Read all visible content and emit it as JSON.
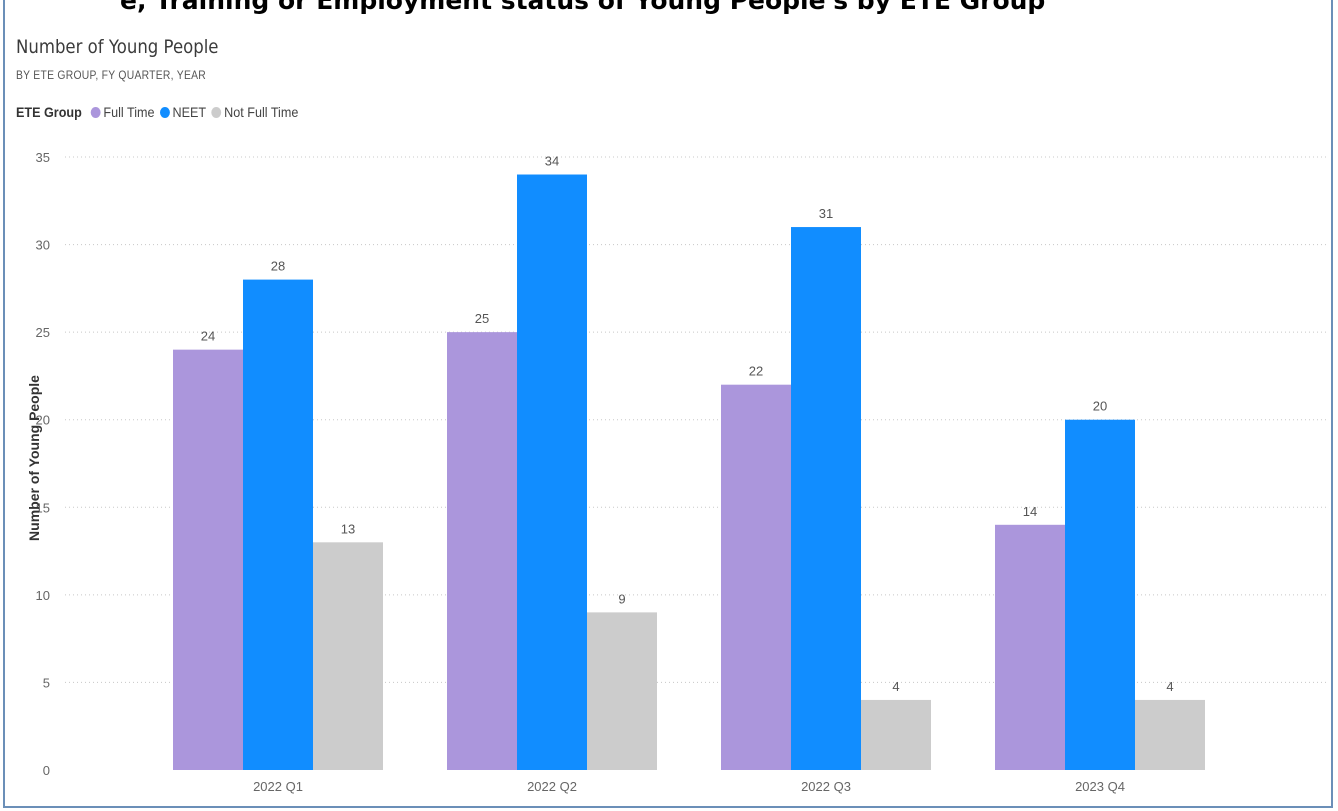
{
  "page": {
    "cut_title": "e, Training or Employment status of Young People's by ETE Group"
  },
  "chart_data": {
    "type": "bar",
    "title": "Number of Young People",
    "subtitle": "BY ETE GROUP, FY QUARTER, YEAR",
    "legend_title": "ETE Group",
    "legend_position": "top-left",
    "ylabel": "Number of Young People",
    "xlabel": "",
    "ylim": [
      0,
      35
    ],
    "yticks": [
      0,
      5,
      10,
      15,
      20,
      25,
      30,
      35
    ],
    "grid": true,
    "categories": [
      "2022 Q1",
      "2022 Q2",
      "2022 Q3",
      "2023 Q4"
    ],
    "series": [
      {
        "name": "Full Time",
        "color": "#ab96dc",
        "values": [
          24,
          25,
          22,
          14
        ]
      },
      {
        "name": "NEET",
        "color": "#118dff",
        "values": [
          28,
          34,
          31,
          20
        ]
      },
      {
        "name": "Not Full Time",
        "color": "#cccccc",
        "values": [
          13,
          9,
          4,
          4
        ]
      }
    ]
  }
}
